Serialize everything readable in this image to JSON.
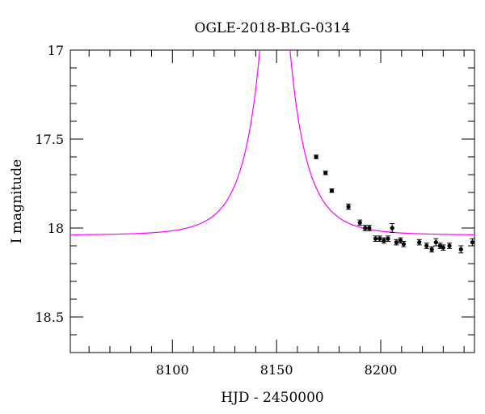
{
  "chart_data": {
    "type": "scatter",
    "title": "OGLE-2018-BLG-0314",
    "xlabel": "HJD - 2450000",
    "ylabel": "I magnitude",
    "xlim": [
      8051,
      8245
    ],
    "ylim": [
      18.7,
      17.0
    ],
    "y_inverted": true,
    "grid": false,
    "x_ticks": [
      8100,
      8150,
      8200
    ],
    "x_tick_labels": [
      "8100",
      "8150",
      "8200"
    ],
    "y_ticks": [
      17,
      17.5,
      18,
      18.5
    ],
    "y_tick_labels": [
      "17",
      "17.5",
      "18",
      "18.5"
    ],
    "model_color": "#ff00ff",
    "point_color": "#000000",
    "model": {
      "name": "",
      "t0": 8149.2,
      "u0": 0.05,
      "tE": 18.0,
      "baseline_mag": 18.04
    },
    "series": [
      {
        "name": "",
        "x": [
          8169.0,
          8173.5,
          8176.5,
          8184.5,
          8190.0,
          8192.5,
          8194.5,
          8197.5,
          8199.5,
          8201.5,
          8203.5,
          8205.5,
          8207.5,
          8209.5,
          8211.0,
          8218.5,
          8222.0,
          8224.5,
          8226.5,
          8228.5,
          8230.0,
          8233.0,
          8238.5,
          8244.0
        ],
        "y": [
          17.6,
          17.69,
          17.79,
          17.88,
          17.97,
          18.0,
          18.0,
          18.06,
          18.06,
          18.07,
          18.06,
          18.0,
          18.08,
          18.07,
          18.09,
          18.08,
          18.1,
          18.12,
          18.08,
          18.1,
          18.11,
          18.1,
          18.12,
          18.08
        ],
        "yerr": [
          0.01,
          0.01,
          0.01,
          0.015,
          0.015,
          0.015,
          0.015,
          0.015,
          0.015,
          0.015,
          0.015,
          0.025,
          0.015,
          0.015,
          0.015,
          0.015,
          0.015,
          0.015,
          0.02,
          0.015,
          0.015,
          0.015,
          0.02,
          0.02
        ]
      }
    ]
  }
}
